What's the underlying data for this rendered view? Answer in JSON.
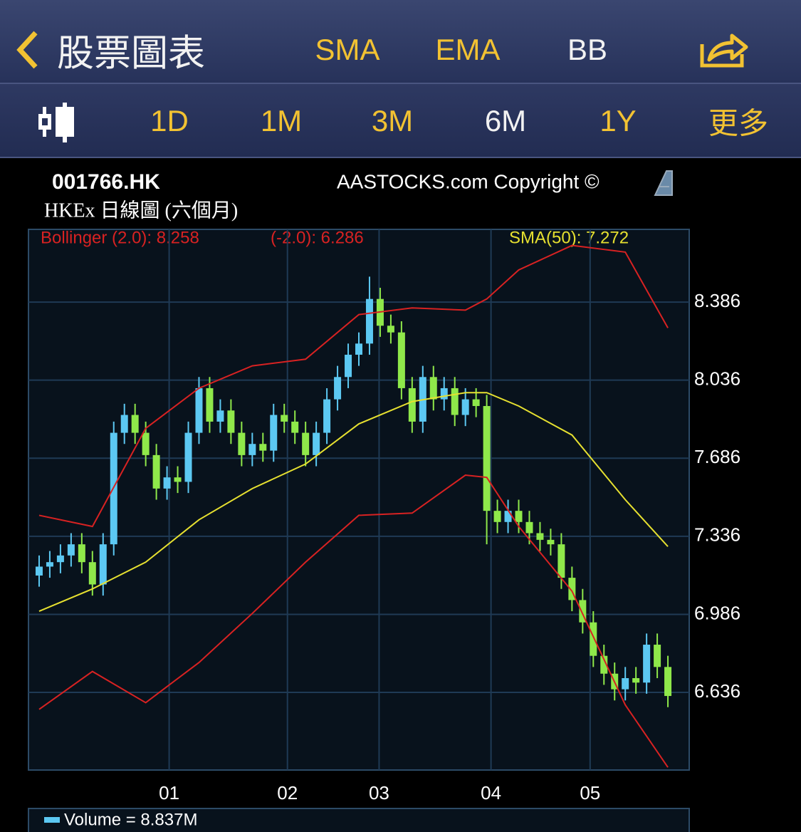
{
  "header": {
    "title": "股票圖表",
    "buttons": [
      "SMA",
      "EMA",
      "BB"
    ]
  },
  "periods": [
    "1D",
    "1M",
    "3M",
    "6M",
    "1Y",
    "更多"
  ],
  "chart_header": {
    "symbol": "001766.HK",
    "copyright": "AASTOCKS.com Copyright ©",
    "subtitle": "HKEx 日線圖 (六個月)"
  },
  "indicators": [
    "Bollinger (2.0): 8.258",
    "(-2.0): 6.286",
    "SMA(50): 7.272"
  ],
  "volume_label": "Volume = 8.837M",
  "chart_data": {
    "type": "candlestick",
    "x": [
      0,
      1,
      2,
      3,
      4,
      5,
      6,
      7,
      8,
      9,
      10,
      11,
      12,
      13,
      14,
      15,
      16,
      17,
      18,
      19,
      20,
      21,
      22,
      23,
      24,
      25,
      26,
      27,
      28,
      29,
      30,
      31,
      32,
      33,
      34,
      35,
      36,
      37,
      38,
      39,
      40,
      41,
      42,
      43,
      44,
      45,
      46,
      47,
      48,
      49,
      50,
      51,
      52,
      53,
      54,
      55,
      56,
      57,
      58,
      59
    ],
    "open": [
      7.16,
      7.2,
      7.22,
      7.25,
      7.3,
      7.22,
      7.12,
      7.3,
      7.8,
      7.88,
      7.8,
      7.7,
      7.55,
      7.6,
      7.58,
      7.8,
      8.0,
      7.85,
      7.9,
      7.8,
      7.7,
      7.75,
      7.72,
      7.88,
      7.85,
      7.8,
      7.7,
      7.8,
      7.95,
      8.05,
      8.15,
      8.2,
      8.4,
      8.28,
      8.25,
      8.0,
      7.85,
      8.05,
      7.95,
      8.0,
      7.88,
      7.95,
      7.92,
      7.45,
      7.4,
      7.45,
      7.4,
      7.35,
      7.32,
      7.3,
      7.15,
      7.05,
      6.95,
      6.8,
      6.72,
      6.65,
      6.7,
      6.68,
      6.85,
      6.75
    ],
    "high": [
      7.25,
      7.27,
      7.3,
      7.35,
      7.35,
      7.27,
      7.35,
      7.85,
      7.93,
      7.93,
      7.85,
      7.75,
      7.65,
      7.65,
      7.85,
      8.05,
      8.05,
      7.95,
      7.95,
      7.85,
      7.8,
      7.8,
      7.93,
      7.93,
      7.9,
      7.85,
      7.85,
      8.0,
      8.1,
      8.2,
      8.25,
      8.5,
      8.45,
      8.33,
      8.3,
      8.05,
      8.1,
      8.1,
      8.05,
      8.05,
      8.0,
      8.0,
      7.97,
      7.5,
      7.5,
      7.5,
      7.45,
      7.4,
      7.37,
      7.35,
      7.2,
      7.1,
      7.0,
      6.85,
      6.77,
      6.75,
      6.75,
      6.9,
      6.9,
      6.8
    ],
    "low": [
      7.11,
      7.15,
      7.17,
      7.2,
      7.17,
      7.07,
      7.07,
      7.25,
      7.75,
      7.75,
      7.65,
      7.5,
      7.5,
      7.53,
      7.53,
      7.75,
      7.8,
      7.8,
      7.75,
      7.65,
      7.65,
      7.67,
      7.67,
      7.8,
      7.75,
      7.65,
      7.65,
      7.75,
      7.9,
      8.0,
      8.1,
      8.15,
      8.23,
      8.2,
      7.95,
      7.8,
      7.8,
      7.9,
      7.9,
      7.83,
      7.83,
      7.87,
      7.3,
      7.35,
      7.35,
      7.35,
      7.3,
      7.27,
      7.25,
      7.1,
      7.0,
      6.9,
      6.75,
      6.67,
      6.6,
      6.6,
      6.63,
      6.63,
      6.7,
      6.57
    ],
    "close": [
      7.2,
      7.22,
      7.25,
      7.3,
      7.22,
      7.12,
      7.3,
      7.8,
      7.88,
      7.8,
      7.7,
      7.55,
      7.6,
      7.58,
      7.8,
      8.0,
      7.85,
      7.9,
      7.8,
      7.7,
      7.75,
      7.72,
      7.88,
      7.85,
      7.8,
      7.7,
      7.8,
      7.95,
      8.05,
      8.15,
      8.2,
      8.4,
      8.28,
      8.25,
      8.0,
      7.85,
      8.05,
      7.95,
      8.0,
      7.88,
      7.95,
      7.92,
      7.45,
      7.4,
      7.45,
      7.4,
      7.35,
      7.32,
      7.3,
      7.15,
      7.05,
      6.95,
      6.8,
      6.72,
      6.65,
      6.7,
      6.68,
      6.85,
      6.75,
      6.62
    ],
    "up_color": "#5cc8f2",
    "down_color": "#8fe84a",
    "overlays": [
      {
        "color": "#d82222",
        "x": [
          0,
          5,
          10,
          15,
          20,
          25,
          30,
          35,
          40,
          42,
          45,
          50,
          55,
          59
        ],
        "values": [
          7.43,
          7.38,
          7.82,
          8.0,
          8.1,
          8.13,
          8.33,
          8.36,
          8.35,
          8.4,
          8.53,
          8.64,
          8.61,
          8.27
        ]
      },
      {
        "color": "#d82222",
        "x": [
          0,
          5,
          10,
          15,
          20,
          25,
          30,
          35,
          40,
          42,
          45,
          50,
          55,
          59
        ],
        "values": [
          6.56,
          6.73,
          6.59,
          6.77,
          6.99,
          7.22,
          7.43,
          7.44,
          7.61,
          7.6,
          7.38,
          7.09,
          6.58,
          6.3
        ]
      },
      {
        "color": "#e6e030",
        "x": [
          0,
          5,
          10,
          15,
          20,
          25,
          30,
          35,
          40,
          42,
          45,
          50,
          55,
          59
        ],
        "values": [
          7.0,
          7.1,
          7.22,
          7.41,
          7.55,
          7.66,
          7.84,
          7.94,
          7.98,
          7.98,
          7.92,
          7.79,
          7.5,
          7.29
        ]
      }
    ],
    "xlim": [
      -1,
      61
    ],
    "ylim": [
      6.288,
      8.712
    ],
    "xticks": [
      {
        "value": 12.2,
        "label": "01"
      },
      {
        "value": 23.3,
        "label": "02"
      },
      {
        "value": 31.9,
        "label": "03"
      },
      {
        "value": 42.4,
        "label": "04"
      },
      {
        "value": 51.7,
        "label": "05"
      }
    ],
    "yticks": [
      8.386,
      8.036,
      7.686,
      7.336,
      6.986,
      6.636
    ],
    "grid": true
  }
}
